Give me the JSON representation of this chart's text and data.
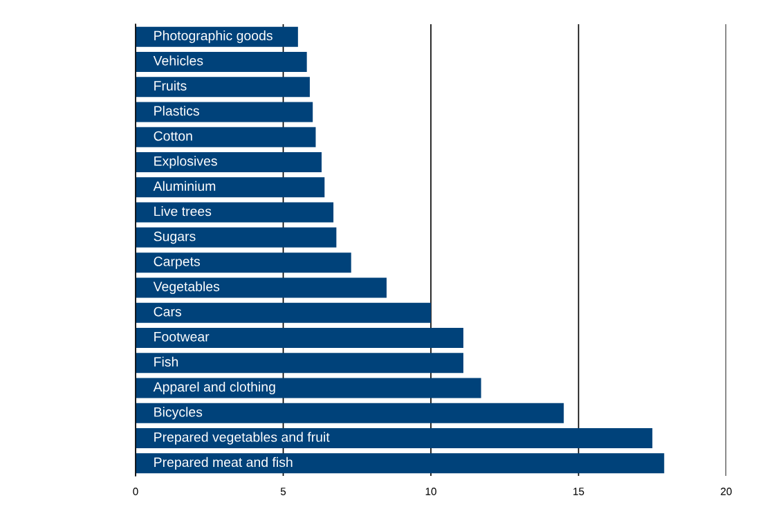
{
  "chart_data": {
    "type": "bar",
    "orientation": "horizontal",
    "categories": [
      "Photographic goods",
      "Vehicles",
      "Fruits",
      "Plastics",
      "Cotton",
      "Explosives",
      "Aluminium",
      "Live trees",
      "Sugars",
      "Carpets",
      "Vegetables",
      "Cars",
      "Footwear",
      "Fish",
      "Apparel and clothing",
      "Bicycles",
      "Prepared vegetables and fruit",
      "Prepared meat and fish"
    ],
    "values": [
      5.5,
      5.8,
      5.9,
      6.0,
      6.1,
      6.3,
      6.4,
      6.7,
      6.8,
      7.3,
      8.5,
      10.0,
      11.1,
      11.1,
      11.7,
      14.5,
      17.5,
      17.9
    ],
    "color": "#00427a",
    "xlim": [
      0,
      20
    ],
    "xticks": [
      0,
      5,
      10,
      15,
      20
    ],
    "grid": "x"
  }
}
